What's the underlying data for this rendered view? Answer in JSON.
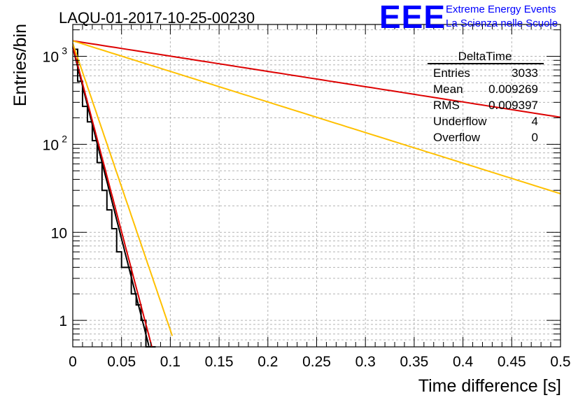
{
  "title": "LAQU-01-2017-10-25-00230",
  "logo": {
    "letters": "EEE",
    "line1": "Extreme Energy Events",
    "line2": "La Scienza nelle Scuole",
    "color": "#0000ff"
  },
  "stats": {
    "name": "DeltaTime",
    "rows": [
      {
        "label": "Entries",
        "value": "3033"
      },
      {
        "label": "Mean",
        "value": "0.009269"
      },
      {
        "label": "RMS",
        "value": "0.009397"
      },
      {
        "label": "Underflow",
        "value": "4"
      },
      {
        "label": "Overflow",
        "value": "0"
      }
    ]
  },
  "chart_data": {
    "type": "line",
    "title": "LAQU-01-2017-10-25-00230",
    "xlabel": "Time difference [s]",
    "ylabel": "Entries/bin",
    "xlim": [
      0,
      0.5
    ],
    "ylim": [
      0.5,
      2300
    ],
    "yscale": "log",
    "grid": true,
    "x_ticks": [
      "0",
      "0.05",
      "0.1",
      "0.15",
      "0.2",
      "0.25",
      "0.3",
      "0.35",
      "0.4",
      "0.45",
      "0.5"
    ],
    "y_ticks": [
      {
        "value": 1,
        "base": "1",
        "exp": ""
      },
      {
        "value": 10,
        "base": "10",
        "exp": ""
      },
      {
        "value": 100,
        "base": "10",
        "exp": "2"
      },
      {
        "value": 1000,
        "base": "10",
        "exp": "3"
      }
    ],
    "histogram": {
      "name": "DeltaTime",
      "bin_width": 0.005,
      "color": "#000000",
      "counts": [
        1200,
        520,
        270,
        180,
        110,
        62,
        30,
        18,
        11,
        6,
        4,
        4,
        2,
        1.5,
        1,
        0.5,
        0.5
      ]
    },
    "series": [
      {
        "name": "fit-short",
        "color": "#000000",
        "model": "exp",
        "amplitude": 1250,
        "slope": -100,
        "x_range": [
          0,
          0.079
        ]
      },
      {
        "name": "fit-short-upper",
        "color": "#dd0000",
        "model": "exp",
        "amplitude": 1300,
        "slope": -97,
        "x_range": [
          0,
          0.081
        ]
      },
      {
        "name": "fit-long-upper",
        "color": "#dd0000",
        "model": "exp",
        "amplitude": 1500,
        "slope": -4.0,
        "x_range": [
          0,
          0.5
        ]
      },
      {
        "name": "fit-steep",
        "color": "#ffc000",
        "model": "exp",
        "amplitude": 1400,
        "slope": -75,
        "x_range": [
          0,
          0.102
        ]
      },
      {
        "name": "fit-long-lower",
        "color": "#ffc000",
        "model": "exp",
        "amplitude": 1500,
        "slope": -8.0,
        "x_range": [
          0,
          0.5
        ]
      }
    ]
  }
}
